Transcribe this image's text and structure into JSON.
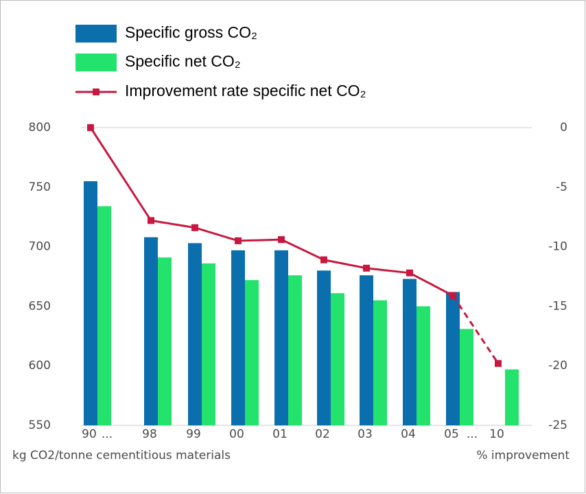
{
  "chart_data": {
    "type": "bar_line",
    "categories": [
      "90",
      "...",
      "98",
      "99",
      "00",
      "01",
      "02",
      "03",
      "04",
      "05",
      "...",
      "10"
    ],
    "series": [
      {
        "name": "Specific gross CO₂",
        "color": "#0b6fae",
        "values": [
          755,
          null,
          708,
          703,
          697,
          697,
          680,
          676,
          673,
          662,
          null,
          null
        ]
      },
      {
        "name": "Specific net CO₂",
        "color": "#23e36c",
        "values": [
          734,
          null,
          691,
          686,
          672,
          676,
          661,
          655,
          650,
          631,
          null,
          597
        ]
      },
      {
        "name": "Improvement rate specific net CO₂",
        "color": "#c8183f",
        "axis": "y2",
        "values": [
          0,
          null,
          -7.8,
          -8.4,
          -9.5,
          -9.4,
          -11.1,
          -11.8,
          -12.2,
          -14.1,
          null,
          -19.8
        ],
        "dashed_from": "05"
      }
    ],
    "ylim": [
      550,
      800
    ],
    "yticks": [
      550,
      600,
      650,
      700,
      750,
      800
    ],
    "y2lim": [
      -25,
      0
    ],
    "y2ticks": [
      -25,
      -20,
      -15,
      -10,
      -5,
      0
    ],
    "xlabel": "kg CO2/tonne cementitious materials",
    "y2label": "% improvement",
    "legend": "top-left",
    "grid": false
  }
}
